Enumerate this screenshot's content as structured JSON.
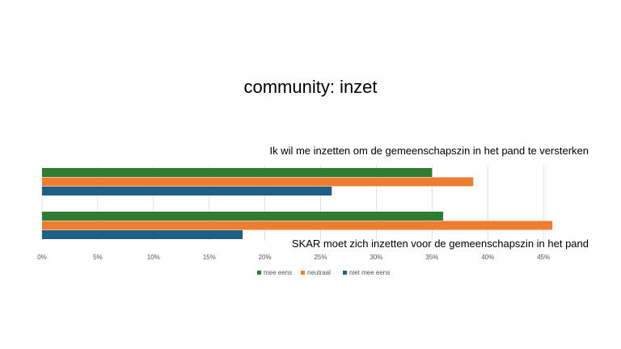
{
  "slide": {
    "title": "community: inzet"
  },
  "chart_data": {
    "type": "bar",
    "orientation": "horizontal",
    "categories": [
      "Ik wil me inzetten om de gemeenschapszin in het pand te versterken",
      "SKAR moet zich inzetten voor de gemeenschapszin in het pand"
    ],
    "series": [
      {
        "name": "mee eens",
        "color": "#2e7d32",
        "values": [
          35,
          36
        ]
      },
      {
        "name": "neutraal",
        "color": "#ed7d31",
        "values": [
          38.7,
          45.8
        ]
      },
      {
        "name": "niet mee eens",
        "color": "#1f5f86",
        "values": [
          26,
          18
        ]
      }
    ],
    "xticks": [
      "0%",
      "5%",
      "10%",
      "15%",
      "20%",
      "25%",
      "30%",
      "35%",
      "40%",
      "45%"
    ],
    "xlim": [
      0,
      45
    ],
    "grid": true,
    "legend_position": "bottom"
  }
}
